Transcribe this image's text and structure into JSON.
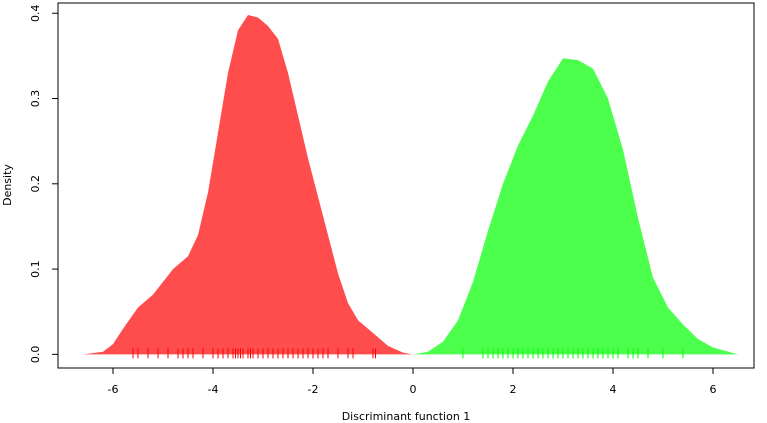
{
  "chart_data": {
    "type": "density",
    "xlabel": "Discriminant function 1",
    "ylabel": "Density",
    "xlim": [
      -7.1,
      6.82
    ],
    "ylim": [
      -0.016,
      0.412
    ],
    "xticks": [
      -6,
      -4,
      -2,
      0,
      2,
      4,
      6
    ],
    "yticks": [
      {
        "value": 0,
        "label": "0.0"
      },
      0.1,
      0.2,
      0.3,
      0.4
    ],
    "series": [
      {
        "color": "#ff4d4d",
        "rug_color": "#ff0000",
        "x": [
          -6.6,
          -6.2,
          -6.0,
          -5.8,
          -5.5,
          -5.2,
          -5.0,
          -4.8,
          -4.5,
          -4.3,
          -4.1,
          -3.9,
          -3.7,
          -3.5,
          -3.3,
          -3.1,
          -2.9,
          -2.7,
          -2.5,
          -2.3,
          -2.1,
          -1.9,
          -1.7,
          -1.5,
          -1.3,
          -1.1,
          -0.8,
          -0.5,
          -0.2,
          0.0
        ],
        "values": [
          0.0,
          0.003,
          0.012,
          0.03,
          0.055,
          0.07,
          0.085,
          0.1,
          0.115,
          0.14,
          0.19,
          0.26,
          0.33,
          0.38,
          0.398,
          0.395,
          0.385,
          0.37,
          0.33,
          0.28,
          0.23,
          0.185,
          0.14,
          0.095,
          0.06,
          0.04,
          0.025,
          0.01,
          0.002,
          0.0
        ],
        "rug": [
          -5.6,
          -5.5,
          -5.3,
          -5.1,
          -4.9,
          -4.7,
          -4.6,
          -4.5,
          -4.4,
          -4.2,
          -4.0,
          -3.9,
          -3.8,
          -3.7,
          -3.6,
          -3.55,
          -3.5,
          -3.45,
          -3.4,
          -3.3,
          -3.25,
          -3.2,
          -3.1,
          -3.0,
          -2.9,
          -2.8,
          -2.7,
          -2.6,
          -2.5,
          -2.4,
          -2.3,
          -2.2,
          -2.1,
          -2.0,
          -1.9,
          -1.8,
          -1.7,
          -1.5,
          -1.3,
          -1.2,
          -0.8,
          -0.75
        ]
      },
      {
        "color": "#4dff4d",
        "rug_color": "#00ff00",
        "x": [
          0.0,
          0.3,
          0.6,
          0.9,
          1.2,
          1.5,
          1.8,
          2.1,
          2.4,
          2.7,
          3.0,
          3.3,
          3.6,
          3.9,
          4.2,
          4.5,
          4.8,
          5.1,
          5.4,
          5.7,
          6.0,
          6.5
        ],
        "values": [
          0.0,
          0.003,
          0.015,
          0.04,
          0.085,
          0.145,
          0.2,
          0.245,
          0.28,
          0.32,
          0.347,
          0.345,
          0.335,
          0.3,
          0.24,
          0.16,
          0.09,
          0.055,
          0.035,
          0.018,
          0.008,
          0.0
        ],
        "rug": [
          1.0,
          1.4,
          1.5,
          1.6,
          1.7,
          1.8,
          1.9,
          2.0,
          2.1,
          2.2,
          2.3,
          2.4,
          2.5,
          2.6,
          2.7,
          2.8,
          2.9,
          3.0,
          3.1,
          3.2,
          3.3,
          3.4,
          3.5,
          3.6,
          3.7,
          3.8,
          3.9,
          4.0,
          4.1,
          4.3,
          4.4,
          4.5,
          4.7,
          5.0,
          5.4
        ]
      }
    ]
  }
}
